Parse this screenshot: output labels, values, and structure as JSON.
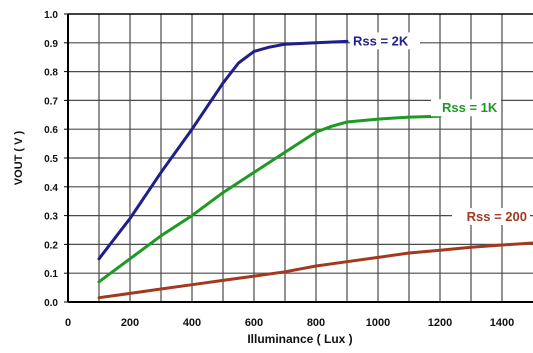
{
  "chart_data": {
    "type": "line",
    "title": "",
    "xlabel": "Illuminance ( Lux )",
    "ylabel": "VOUT ( V )",
    "xlim": [
      0,
      1500
    ],
    "ylim": [
      0.0,
      1.0
    ],
    "x_ticks": [
      "0",
      "200",
      "400",
      "600",
      "800",
      "1000",
      "1200",
      "1400"
    ],
    "y_ticks": [
      "0.0",
      "0.1",
      "0.2",
      "0.3",
      "0.4",
      "0.5",
      "0.6",
      "0.7",
      "0.8",
      "0.9",
      "1.0"
    ],
    "grid": true,
    "series": [
      {
        "name": "Rss = 2K",
        "color": "#1f1f8c",
        "x": [
          100,
          200,
          300,
          400,
          500,
          550,
          600,
          650,
          700,
          800,
          900
        ],
        "y": [
          0.15,
          0.29,
          0.45,
          0.6,
          0.76,
          0.83,
          0.87,
          0.885,
          0.895,
          0.9,
          0.905
        ]
      },
      {
        "name": "Rss = 1K",
        "color": "#1e9a22",
        "x": [
          100,
          200,
          300,
          400,
          500,
          600,
          700,
          800,
          850,
          900,
          1000,
          1100,
          1200
        ],
        "y": [
          0.07,
          0.15,
          0.23,
          0.3,
          0.38,
          0.45,
          0.52,
          0.59,
          0.61,
          0.625,
          0.635,
          0.642,
          0.645
        ]
      },
      {
        "name": "Rss = 200",
        "color": "#a3391f",
        "x": [
          100,
          200,
          300,
          400,
          500,
          600,
          700,
          800,
          900,
          1000,
          1100,
          1200,
          1300,
          1400,
          1500
        ],
        "y": [
          0.015,
          0.03,
          0.045,
          0.06,
          0.075,
          0.09,
          0.105,
          0.125,
          0.14,
          0.155,
          0.17,
          0.18,
          0.19,
          0.198,
          0.205
        ]
      }
    ]
  }
}
